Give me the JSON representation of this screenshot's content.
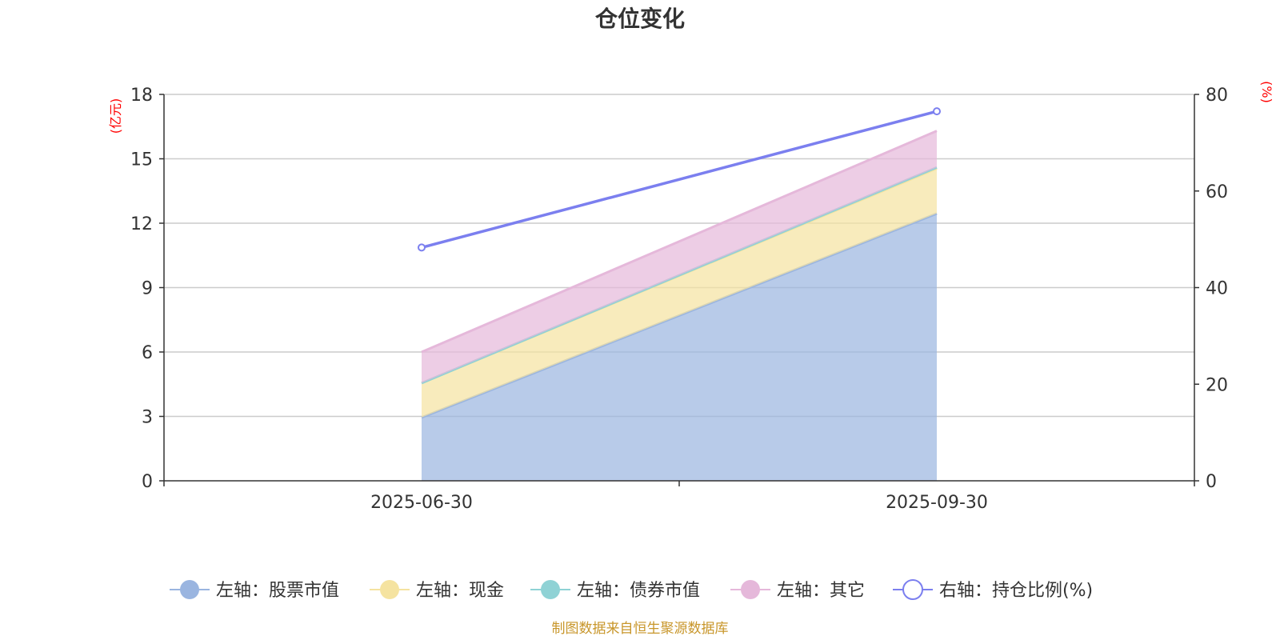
{
  "chart_data": {
    "type": "area",
    "title": "仓位变化",
    "categories": [
      "2025-06-30",
      "2025-09-30"
    ],
    "left_axis": {
      "unit": "(亿元)",
      "ticks": [
        "0",
        "3",
        "6",
        "9",
        "12",
        "15",
        "18"
      ],
      "ylim": [
        0,
        18
      ]
    },
    "right_axis": {
      "unit": "(%)",
      "ticks": [
        "0",
        "20",
        "40",
        "60",
        "80"
      ],
      "ylim": [
        0,
        80
      ]
    },
    "grid": true,
    "stacked": true,
    "series": [
      {
        "name": "左轴：股票市值",
        "axis": "left",
        "type": "area",
        "color": "#9ab5e0",
        "values": [
          2.95,
          12.45
        ]
      },
      {
        "name": "左轴：现金",
        "axis": "left",
        "type": "area",
        "color": "#f5e3a0",
        "values": [
          1.6,
          2.1
        ]
      },
      {
        "name": "左轴：债券市值",
        "axis": "left",
        "type": "area",
        "color": "#8fd2d5",
        "values": [
          0.0,
          0.05
        ]
      },
      {
        "name": "左轴：其它",
        "axis": "left",
        "type": "area",
        "color": "#e5b8da",
        "values": [
          1.45,
          1.7
        ]
      },
      {
        "name": "右轴：持仓比例(%)",
        "axis": "right",
        "type": "line",
        "color": "#7b7fef",
        "values": [
          48.3,
          76.5
        ]
      }
    ],
    "legend_position": "bottom",
    "source": "制图数据来自恒生聚源数据库"
  }
}
